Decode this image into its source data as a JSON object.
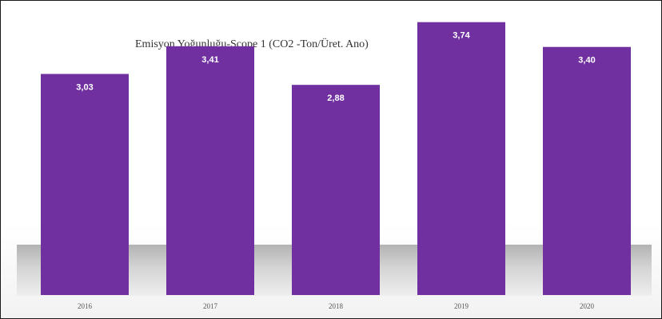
{
  "chart_data": {
    "type": "bar",
    "title": "Emisyon Yoğunluğu-Scope 1 (CO2 -Ton/Üret. Ano)",
    "categories": [
      "2016",
      "2017",
      "2018",
      "2019",
      "2020"
    ],
    "values": [
      3.03,
      3.41,
      2.88,
      3.74,
      3.4
    ],
    "value_labels": [
      "3,03",
      "3,41",
      "2,88",
      "3,74",
      "3,40"
    ],
    "ylim": [
      0,
      4
    ],
    "grid": false,
    "legend": "none",
    "bar_color": "#7030a0"
  }
}
